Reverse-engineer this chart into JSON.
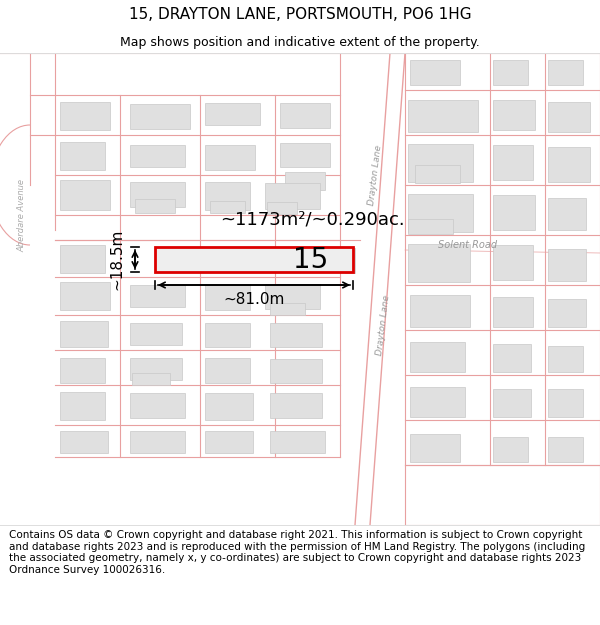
{
  "title": "15, DRAYTON LANE, PORTSMOUTH, PO6 1HG",
  "subtitle": "Map shows position and indicative extent of the property.",
  "footer": "Contains OS data © Crown copyright and database right 2021. This information is subject to Crown copyright and database rights 2023 and is reproduced with the permission of HM Land Registry. The polygons (including the associated geometry, namely x, y co-ordinates) are subject to Crown copyright and database rights 2023 Ordnance Survey 100026316.",
  "area_text": "~1173m²/~0.290ac.",
  "width_text": "~81.0m",
  "height_text": "~18.5m",
  "number_text": "15",
  "bg_color": "#ffffff",
  "map_bg": "#ffffff",
  "road_line_color": "#e8a0a0",
  "block_face": "#e0e0e0",
  "block_edge": "#c8c8c8",
  "highlight_color": "#dd0000",
  "highlight_fill": "#e8e8e8",
  "dim_color": "#000000",
  "label_color": "#aaaaaa",
  "title_fontsize": 11,
  "subtitle_fontsize": 9,
  "footer_fontsize": 7.5
}
